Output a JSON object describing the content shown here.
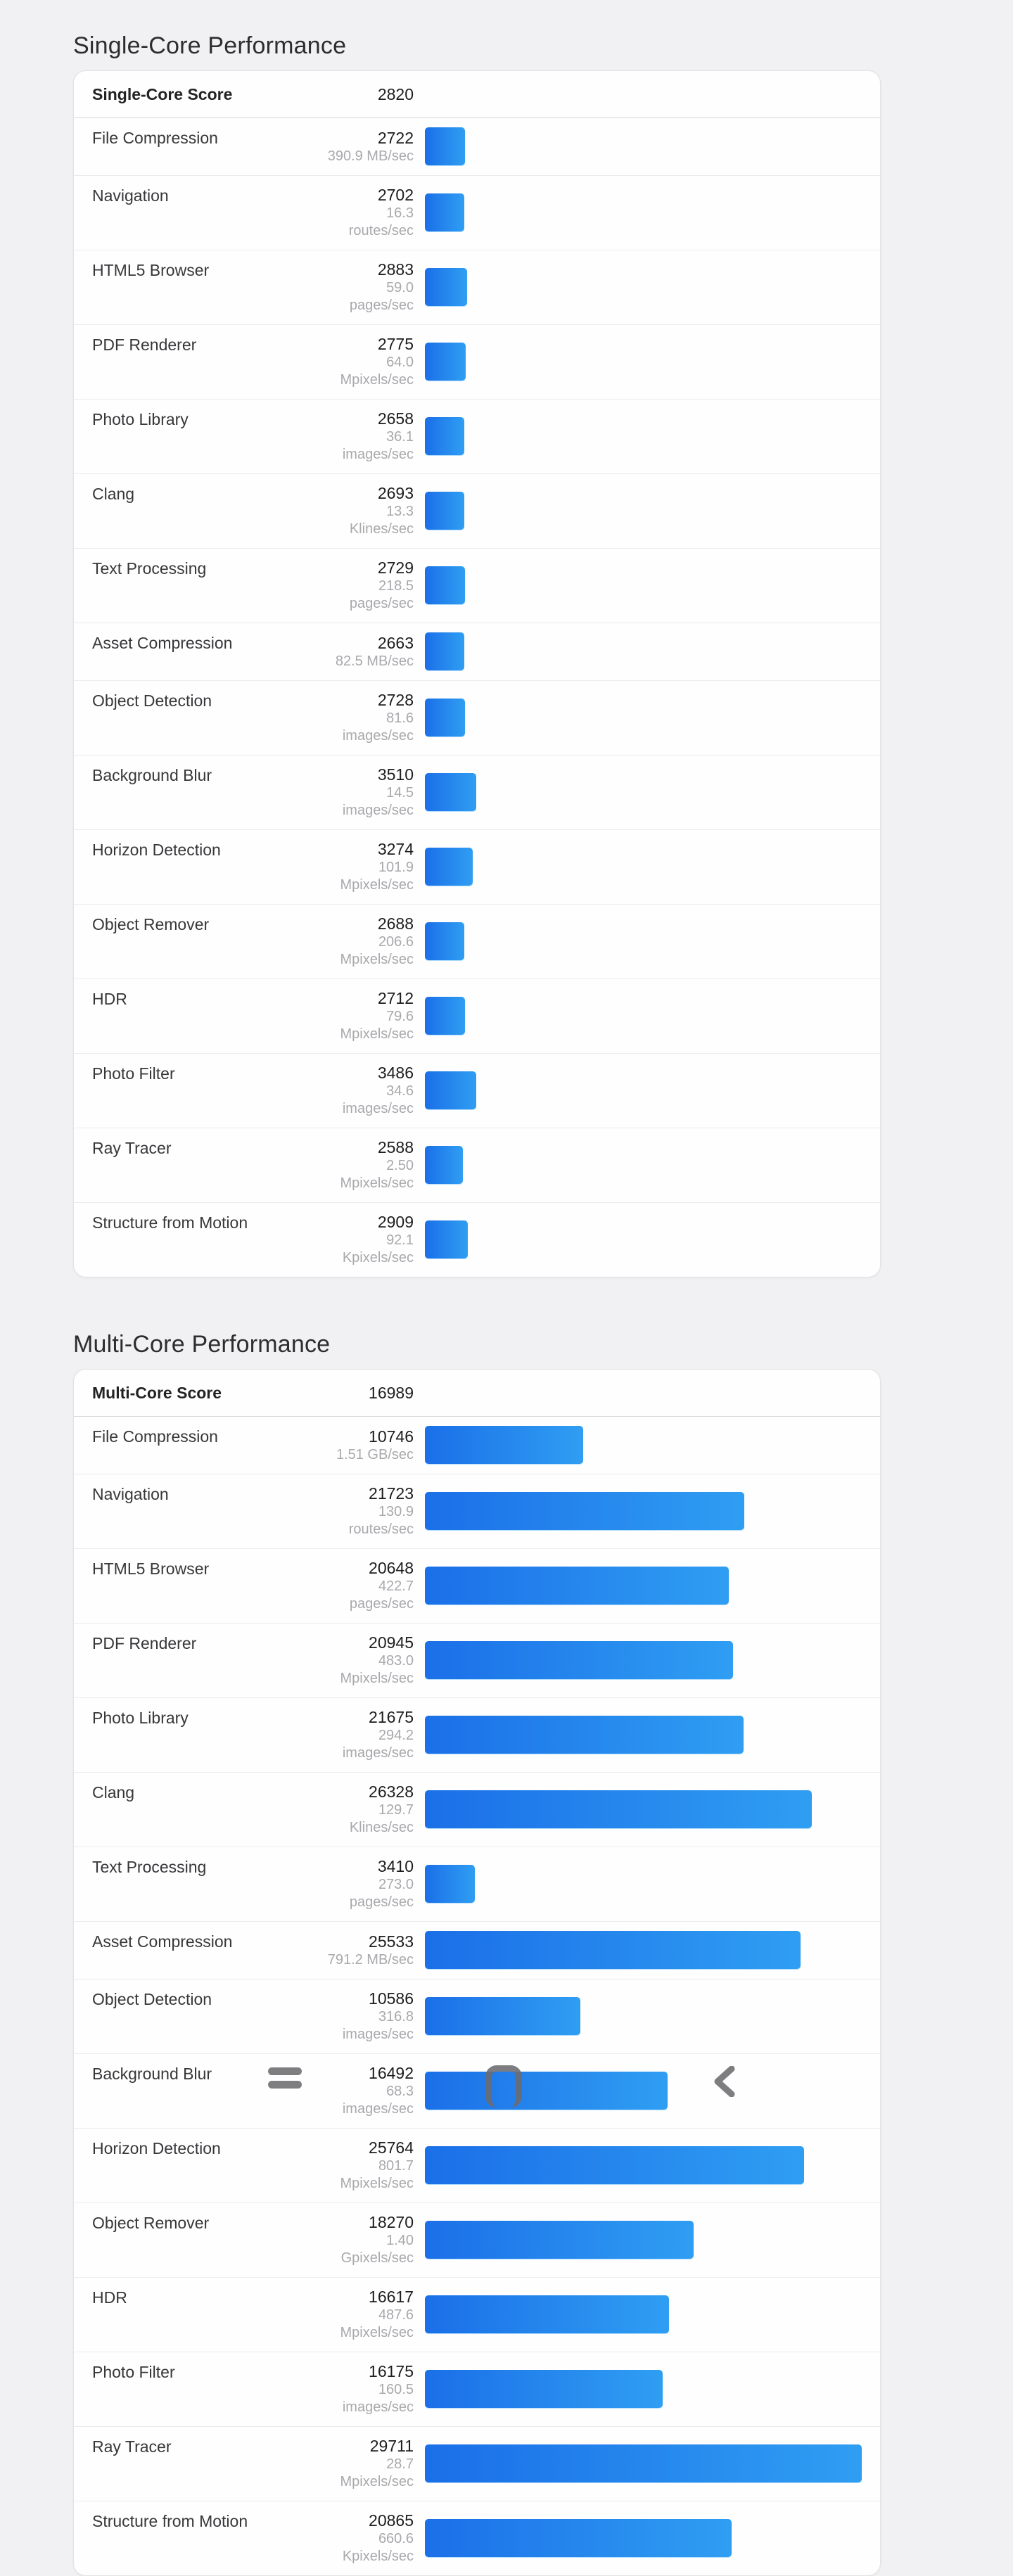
{
  "colors": {
    "page_bg": "#f1f1f3",
    "card_bg": "#fefefe",
    "bar_gradient_start": "#1b6fe8",
    "bar_gradient_end": "#2f9ef2"
  },
  "sections": [
    {
      "title": "Single-Core Performance",
      "header": {
        "label": "Single-Core Score",
        "value": "2820"
      },
      "rows": [
        {
          "label": "File Compression",
          "score": 2722,
          "rate": "390.9 MB/sec"
        },
        {
          "label": "Navigation",
          "score": 2702,
          "rate": "16.3 routes/sec"
        },
        {
          "label": "HTML5 Browser",
          "score": 2883,
          "rate": "59.0 pages/sec"
        },
        {
          "label": "PDF Renderer",
          "score": 2775,
          "rate": "64.0 Mpixels/sec"
        },
        {
          "label": "Photo Library",
          "score": 2658,
          "rate": "36.1 images/sec"
        },
        {
          "label": "Clang",
          "score": 2693,
          "rate": "13.3 Klines/sec"
        },
        {
          "label": "Text Processing",
          "score": 2729,
          "rate": "218.5 pages/sec"
        },
        {
          "label": "Asset Compression",
          "score": 2663,
          "rate": "82.5 MB/sec"
        },
        {
          "label": "Object Detection",
          "score": 2728,
          "rate": "81.6 images/sec"
        },
        {
          "label": "Background Blur",
          "score": 3510,
          "rate": "14.5 images/sec"
        },
        {
          "label": "Horizon Detection",
          "score": 3274,
          "rate": "101.9 Mpixels/sec"
        },
        {
          "label": "Object Remover",
          "score": 2688,
          "rate": "206.6 Mpixels/sec"
        },
        {
          "label": "HDR",
          "score": 2712,
          "rate": "79.6 Mpixels/sec"
        },
        {
          "label": "Photo Filter",
          "score": 3486,
          "rate": "34.6 images/sec"
        },
        {
          "label": "Ray Tracer",
          "score": 2588,
          "rate": "2.50 Mpixels/sec"
        },
        {
          "label": "Structure from Motion",
          "score": 2909,
          "rate": "92.1 Kpixels/sec"
        }
      ]
    },
    {
      "title": "Multi-Core Performance",
      "header": {
        "label": "Multi-Core Score",
        "value": "16989"
      },
      "rows": [
        {
          "label": "File Compression",
          "score": 10746,
          "rate": "1.51 GB/sec"
        },
        {
          "label": "Navigation",
          "score": 21723,
          "rate": "130.9 routes/sec"
        },
        {
          "label": "HTML5 Browser",
          "score": 20648,
          "rate": "422.7 pages/sec"
        },
        {
          "label": "PDF Renderer",
          "score": 20945,
          "rate": "483.0 Mpixels/sec"
        },
        {
          "label": "Photo Library",
          "score": 21675,
          "rate": "294.2 images/sec"
        },
        {
          "label": "Clang",
          "score": 26328,
          "rate": "129.7 Klines/sec"
        },
        {
          "label": "Text Processing",
          "score": 3410,
          "rate": "273.0 pages/sec"
        },
        {
          "label": "Asset Compression",
          "score": 25533,
          "rate": "791.2 MB/sec"
        },
        {
          "label": "Object Detection",
          "score": 10586,
          "rate": "316.8 images/sec"
        },
        {
          "label": "Background Blur",
          "score": 16492,
          "rate": "68.3 images/sec"
        },
        {
          "label": "Horizon Detection",
          "score": 25764,
          "rate": "801.7 Mpixels/sec"
        },
        {
          "label": "Object Remover",
          "score": 18270,
          "rate": "1.40 Gpixels/sec"
        },
        {
          "label": "HDR",
          "score": 16617,
          "rate": "487.6 Mpixels/sec"
        },
        {
          "label": "Photo Filter",
          "score": 16175,
          "rate": "160.5 images/sec"
        },
        {
          "label": "Ray Tracer",
          "score": 29711,
          "rate": "28.7 Mpixels/sec"
        },
        {
          "label": "Structure from Motion",
          "score": 20865,
          "rate": "660.6 Kpixels/sec"
        }
      ]
    }
  ],
  "navbar": {
    "recents": "recents",
    "home": "home",
    "back": "back"
  }
}
